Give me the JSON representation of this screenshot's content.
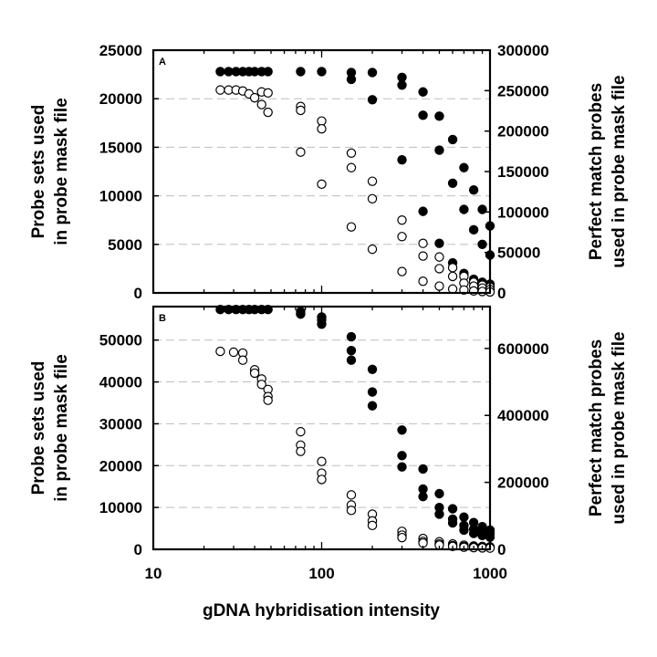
{
  "chart_data": [
    {
      "type": "scatter",
      "panel_label": "A",
      "xscale": "log",
      "xlim": [
        10,
        1000
      ],
      "ylim_left": [
        0,
        25000
      ],
      "ylim_right": [
        0,
        300000
      ],
      "yticks_left": [
        "0",
        "5000",
        "10000",
        "15000",
        "20000",
        "25000"
      ],
      "yticks_right": [
        "0",
        "50000",
        "100000",
        "150000",
        "200000",
        "250000",
        "300000"
      ],
      "ylabel_left": [
        "Probe sets used",
        "in probe mask file"
      ],
      "ylabel_right": [
        "Perfect match probes",
        "used in probe mask file"
      ],
      "grid": "dashed horizontal",
      "series": [
        {
          "marker": "filled-circle",
          "axis": "left",
          "points": [
            [
              25,
              22800
            ],
            [
              28,
              22800
            ],
            [
              31,
              22800
            ],
            [
              34,
              22800
            ],
            [
              37,
              22800
            ],
            [
              40,
              22800
            ],
            [
              44,
              22800
            ],
            [
              48,
              22800
            ],
            [
              75,
              22800
            ],
            [
              100,
              22800
            ],
            [
              150,
              22700
            ],
            [
              150,
              22000
            ],
            [
              200,
              22700
            ],
            [
              200,
              19900
            ],
            [
              300,
              22200
            ],
            [
              300,
              21400
            ],
            [
              300,
              13700
            ],
            [
              400,
              20700
            ],
            [
              400,
              18300
            ],
            [
              400,
              8400
            ],
            [
              500,
              18200
            ],
            [
              500,
              14700
            ],
            [
              500,
              5100
            ],
            [
              600,
              15800
            ],
            [
              600,
              11300
            ],
            [
              600,
              3100
            ],
            [
              700,
              12900
            ],
            [
              700,
              8600
            ],
            [
              700,
              2000
            ],
            [
              800,
              10600
            ],
            [
              800,
              6500
            ],
            [
              800,
              1400
            ],
            [
              900,
              8600
            ],
            [
              900,
              5000
            ],
            [
              900,
              1100
            ],
            [
              1000,
              6900
            ],
            [
              1000,
              3900
            ],
            [
              1000,
              900
            ]
          ]
        },
        {
          "marker": "open-circle",
          "axis": "left",
          "points": [
            [
              25,
              20900
            ],
            [
              28,
              20900
            ],
            [
              31,
              20900
            ],
            [
              34,
              20800
            ],
            [
              37,
              20500
            ],
            [
              40,
              20100
            ],
            [
              44,
              20700
            ],
            [
              44,
              19400
            ],
            [
              48,
              20600
            ],
            [
              48,
              18600
            ],
            [
              75,
              19200
            ],
            [
              75,
              18800
            ],
            [
              75,
              14500
            ],
            [
              100,
              17700
            ],
            [
              100,
              16900
            ],
            [
              100,
              11200
            ],
            [
              150,
              14400
            ],
            [
              150,
              12900
            ],
            [
              150,
              6800
            ],
            [
              200,
              11500
            ],
            [
              200,
              9700
            ],
            [
              200,
              4500
            ],
            [
              300,
              7500
            ],
            [
              300,
              5800
            ],
            [
              300,
              2200
            ],
            [
              400,
              5100
            ],
            [
              400,
              3800
            ],
            [
              400,
              1200
            ],
            [
              500,
              3700
            ],
            [
              500,
              2500
            ],
            [
              500,
              700
            ],
            [
              600,
              2600
            ],
            [
              600,
              1700
            ],
            [
              600,
              400
            ],
            [
              700,
              1700
            ],
            [
              700,
              1000
            ],
            [
              700,
              300
            ],
            [
              800,
              1100
            ],
            [
              800,
              700
            ],
            [
              800,
              200
            ],
            [
              900,
              800
            ],
            [
              900,
              500
            ],
            [
              900,
              150
            ],
            [
              1000,
              600
            ],
            [
              1000,
              350
            ],
            [
              1000,
              100
            ]
          ]
        }
      ]
    },
    {
      "type": "scatter",
      "panel_label": "B",
      "xscale": "log",
      "xlim": [
        10,
        1000
      ],
      "ylim_left": [
        0,
        58000
      ],
      "ylim_right": [
        0,
        725000
      ],
      "yticks_left": [
        "0",
        "10000",
        "20000",
        "30000",
        "40000",
        "50000"
      ],
      "yticks_right": [
        "0",
        "200000",
        "400000",
        "600000"
      ],
      "xticks": [
        "10",
        "100",
        "1000"
      ],
      "xlabel": "gDNA hybridisation intensity",
      "ylabel_left": [
        "Probe sets used",
        "in probe mask file"
      ],
      "ylabel_right": [
        "Perfect match probes",
        "used in probe mask file"
      ],
      "grid": "dashed horizontal",
      "series": [
        {
          "marker": "filled-circle",
          "axis": "left",
          "points": [
            [
              25,
              57300
            ],
            [
              28,
              57300
            ],
            [
              31,
              57300
            ],
            [
              34,
              57300
            ],
            [
              37,
              57300
            ],
            [
              40,
              57300
            ],
            [
              44,
              57300
            ],
            [
              48,
              57300
            ],
            [
              75,
              56800
            ],
            [
              75,
              56200
            ],
            [
              100,
              55500
            ],
            [
              100,
              54800
            ],
            [
              100,
              53800
            ],
            [
              150,
              50800
            ],
            [
              150,
              47500
            ],
            [
              150,
              45200
            ],
            [
              200,
              43000
            ],
            [
              200,
              37600
            ],
            [
              200,
              34300
            ],
            [
              300,
              28500
            ],
            [
              300,
              22400
            ],
            [
              300,
              19700
            ],
            [
              400,
              19200
            ],
            [
              400,
              14400
            ],
            [
              400,
              12600
            ],
            [
              500,
              13300
            ],
            [
              500,
              10000
            ],
            [
              500,
              8400
            ],
            [
              600,
              9700
            ],
            [
              600,
              7200
            ],
            [
              600,
              6300
            ],
            [
              700,
              7700
            ],
            [
              700,
              5700
            ],
            [
              700,
              4600
            ],
            [
              800,
              6400
            ],
            [
              800,
              4800
            ],
            [
              800,
              3800
            ],
            [
              900,
              5400
            ],
            [
              900,
              4300
            ],
            [
              900,
              3300
            ],
            [
              1000,
              4600
            ],
            [
              1000,
              3800
            ],
            [
              1000,
              2900
            ]
          ]
        },
        {
          "marker": "open-circle",
          "axis": "left",
          "points": [
            [
              25,
              47300
            ],
            [
              30,
              47100
            ],
            [
              34,
              46900
            ],
            [
              34,
              45200
            ],
            [
              40,
              42900
            ],
            [
              40,
              42100
            ],
            [
              44,
              40700
            ],
            [
              44,
              39400
            ],
            [
              48,
              38200
            ],
            [
              48,
              36500
            ],
            [
              48,
              35600
            ],
            [
              75,
              28100
            ],
            [
              75,
              24900
            ],
            [
              75,
              23400
            ],
            [
              100,
              21000
            ],
            [
              100,
              18200
            ],
            [
              100,
              16700
            ],
            [
              150,
              13000
            ],
            [
              150,
              10600
            ],
            [
              150,
              9300
            ],
            [
              200,
              8400
            ],
            [
              200,
              6800
            ],
            [
              200,
              5700
            ],
            [
              300,
              4300
            ],
            [
              300,
              3400
            ],
            [
              300,
              2800
            ],
            [
              400,
              2600
            ],
            [
              400,
              1900
            ],
            [
              400,
              1500
            ],
            [
              500,
              1800
            ],
            [
              500,
              1300
            ],
            [
              500,
              1000
            ],
            [
              600,
              1300
            ],
            [
              600,
              900
            ],
            [
              600,
              700
            ],
            [
              700,
              1000
            ],
            [
              700,
              700
            ],
            [
              700,
              500
            ],
            [
              800,
              800
            ],
            [
              800,
              600
            ],
            [
              800,
              400
            ],
            [
              900,
              700
            ],
            [
              900,
              500
            ],
            [
              900,
              350
            ],
            [
              1000,
              600
            ],
            [
              1000,
              400
            ],
            [
              1000,
              300
            ]
          ]
        }
      ]
    }
  ]
}
